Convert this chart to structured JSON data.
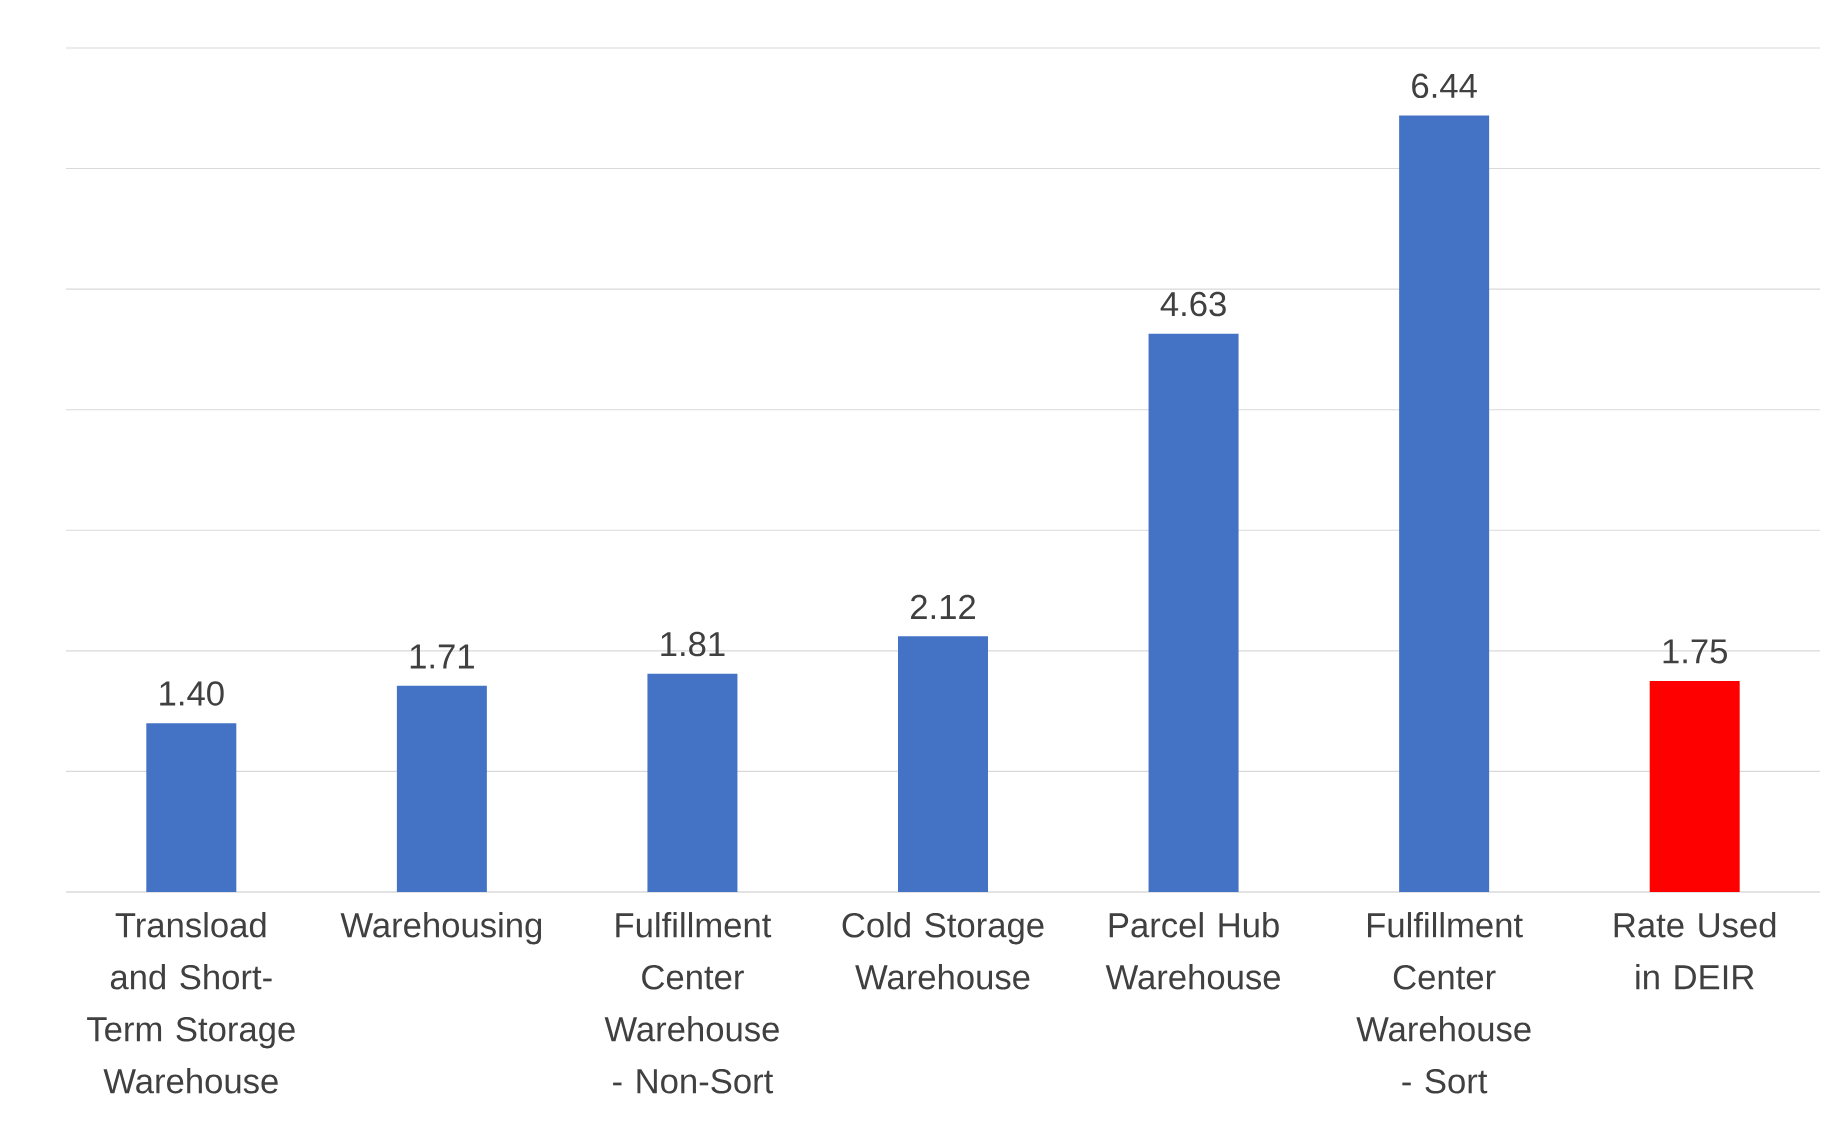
{
  "chart_data": {
    "type": "bar",
    "categories": [
      "Transload and Short-Term Storage Warehouse",
      "Warehousing",
      "Fulfillment Center Warehouse - Non-Sort",
      "Cold Storage Warehouse",
      "Parcel Hub Warehouse",
      "Fulfillment Center Warehouse - Sort",
      "Rate Used in DEIR"
    ],
    "values": [
      1.4,
      1.71,
      1.81,
      2.12,
      4.63,
      6.44,
      1.75
    ],
    "value_labels": [
      "1.40",
      "1.71",
      "1.81",
      "2.12",
      "4.63",
      "6.44",
      "1.75"
    ],
    "colors": [
      "#4472c4",
      "#4472c4",
      "#4472c4",
      "#4472c4",
      "#4472c4",
      "#4472c4",
      "#ff0000"
    ],
    "ylim": [
      0,
      7
    ],
    "yticks": [
      {
        "value": 0,
        "label": null
      },
      {
        "value": 1,
        "label": null
      },
      {
        "value": 2,
        "label": null
      },
      {
        "value": 3,
        "label": null
      },
      {
        "value": 4,
        "label": null
      },
      {
        "value": 5,
        "label": null
      },
      {
        "value": 6,
        "label": null
      },
      {
        "value": 7,
        "label": null
      }
    ],
    "tick_labels": "x",
    "grid": "y"
  }
}
